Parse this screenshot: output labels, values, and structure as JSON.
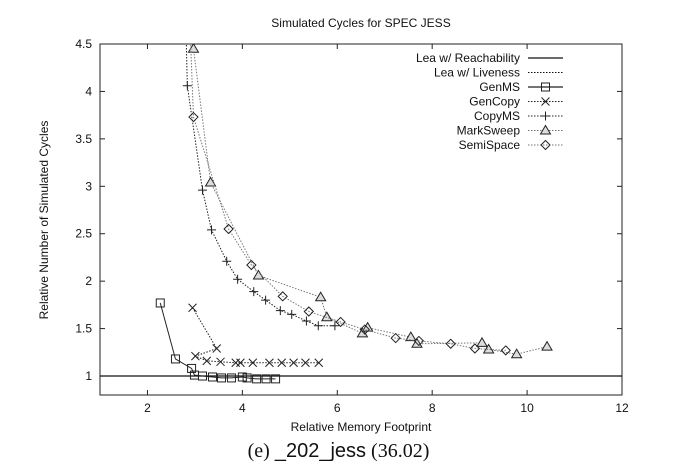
{
  "chart_data": {
    "type": "line",
    "title": "Simulated Cycles for SPEC JESS",
    "xlabel": "Relative Memory Footprint",
    "ylabel": "Relative Number of Simulated Cycles",
    "xlim": [
      1,
      12
    ],
    "ylim": [
      0.8,
      4.5
    ],
    "xticks": [
      2,
      4,
      6,
      8,
      10,
      12
    ],
    "xtick_labels": [
      "2",
      "4",
      "6",
      "8",
      "10",
      "12"
    ],
    "yticks": [
      1,
      1.5,
      2,
      2.5,
      3,
      3.5,
      4,
      4.5
    ],
    "ytick_labels": [
      "1",
      "1.5",
      "2",
      "2.5",
      "3",
      "3.5",
      "4",
      "4.5"
    ],
    "grid": false,
    "legend_position": "top-right",
    "series": [
      {
        "name": "Lea w/ Reachability",
        "style": "solid",
        "marker": "none",
        "hline": 1.0,
        "points": []
      },
      {
        "name": "Lea w/ Liveness",
        "style": "dotted",
        "marker": "none",
        "hline": 1.0,
        "points": []
      },
      {
        "name": "GenMS",
        "style": "solid",
        "marker": "square",
        "points": [
          [
            2.27,
            1.77
          ],
          [
            2.59,
            1.18
          ],
          [
            2.93,
            1.08
          ],
          [
            2.99,
            1.01
          ],
          [
            3.16,
            1.0
          ],
          [
            3.37,
            0.99
          ],
          [
            3.56,
            0.98
          ],
          [
            3.77,
            0.98
          ],
          [
            4.0,
            0.99
          ],
          [
            4.1,
            0.98
          ],
          [
            4.3,
            0.97
          ],
          [
            4.5,
            0.97
          ],
          [
            4.7,
            0.97
          ]
        ]
      },
      {
        "name": "GenCopy",
        "style": "dotted",
        "marker": "x",
        "points": [
          [
            2.95,
            1.72
          ],
          [
            3.46,
            1.29
          ],
          [
            3.01,
            1.21
          ],
          [
            3.25,
            1.16
          ],
          [
            3.54,
            1.15
          ],
          [
            3.86,
            1.14
          ],
          [
            3.96,
            1.14
          ],
          [
            4.22,
            1.14
          ],
          [
            4.57,
            1.14
          ],
          [
            4.83,
            1.14
          ],
          [
            5.08,
            1.14
          ],
          [
            5.33,
            1.14
          ],
          [
            5.61,
            1.14
          ]
        ]
      },
      {
        "name": "CopyMS",
        "style": "dotted",
        "marker": "plus",
        "points": [
          [
            2.8,
            4.9
          ],
          [
            2.84,
            4.06
          ],
          [
            3.16,
            2.96
          ],
          [
            3.35,
            2.54
          ],
          [
            3.67,
            2.21
          ],
          [
            3.9,
            2.02
          ],
          [
            4.24,
            1.89
          ],
          [
            4.49,
            1.8
          ],
          [
            4.8,
            1.69
          ],
          [
            5.04,
            1.65
          ],
          [
            5.35,
            1.58
          ],
          [
            5.6,
            1.53
          ],
          [
            5.95,
            1.53
          ]
        ]
      },
      {
        "name": "MarkSweep",
        "style": "dotted",
        "marker": "triangle",
        "points": [
          [
            2.9,
            4.9
          ],
          [
            2.97,
            4.45
          ],
          [
            3.33,
            3.04
          ],
          [
            4.34,
            2.06
          ],
          [
            5.65,
            1.83
          ],
          [
            5.78,
            1.62
          ],
          [
            6.53,
            1.45
          ],
          [
            6.64,
            1.51
          ],
          [
            7.55,
            1.41
          ],
          [
            7.68,
            1.34
          ],
          [
            9.05,
            1.35
          ],
          [
            9.19,
            1.28
          ],
          [
            9.78,
            1.23
          ],
          [
            10.42,
            1.31
          ]
        ]
      },
      {
        "name": "SemiSpace",
        "style": "dotted",
        "marker": "diamond",
        "points": [
          [
            2.88,
            4.9
          ],
          [
            2.97,
            3.73
          ],
          [
            3.71,
            2.55
          ],
          [
            4.19,
            2.17
          ],
          [
            4.85,
            1.84
          ],
          [
            5.4,
            1.68
          ],
          [
            6.07,
            1.57
          ],
          [
            6.58,
            1.49
          ],
          [
            7.23,
            1.4
          ],
          [
            7.72,
            1.37
          ],
          [
            8.39,
            1.34
          ],
          [
            8.9,
            1.29
          ],
          [
            9.55,
            1.27
          ]
        ]
      }
    ]
  },
  "caption": {
    "prefix": "(e) ",
    "benchmark": "_202_jess",
    "suffix": " (36.02)"
  }
}
